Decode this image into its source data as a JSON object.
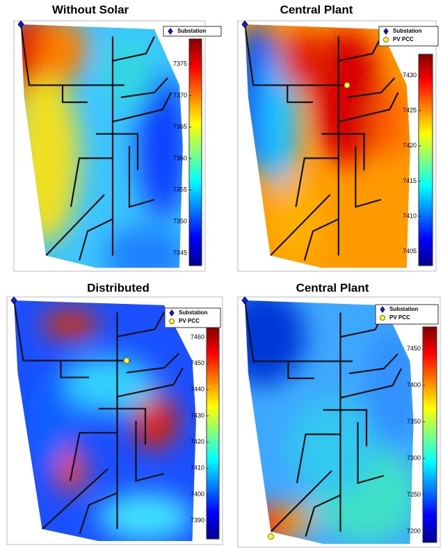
{
  "chart_data": [
    {
      "type": "heatmap",
      "title": "Without Solar",
      "ylim": [
        7343,
        7379
      ],
      "yticks": [
        7345,
        7350,
        7355,
        7360,
        7365,
        7370,
        7375
      ],
      "legend": [
        {
          "name": "Substation",
          "marker": "diamond",
          "color": "#1a1acc"
        }
      ]
    },
    {
      "type": "heatmap",
      "title": "Central Plant",
      "ylim": [
        7403,
        7433
      ],
      "yticks": [
        7405,
        7410,
        7415,
        7420,
        7425,
        7430
      ],
      "legend": [
        {
          "name": "Substation",
          "marker": "diamond",
          "color": "#1a1acc"
        },
        {
          "name": "PV PCC",
          "marker": "star",
          "color": "#ffff33"
        }
      ]
    },
    {
      "type": "heatmap",
      "title": "Distributed",
      "ylim": [
        7383,
        7464
      ],
      "yticks": [
        7390,
        7400,
        7410,
        7420,
        7430,
        7440,
        7450,
        7460
      ],
      "legend": [
        {
          "name": "Substation",
          "marker": "diamond",
          "color": "#1a1acc"
        },
        {
          "name": "PV PCC",
          "marker": "star",
          "color": "#ffff33"
        }
      ]
    },
    {
      "type": "heatmap",
      "title": "Central Plant",
      "ylim": [
        7185,
        7480
      ],
      "yticks": [
        7200,
        7250,
        7300,
        7350,
        7400,
        7450
      ],
      "legend": [
        {
          "name": "Substation",
          "marker": "diamond",
          "color": "#1a1acc"
        },
        {
          "name": "PV PCC",
          "marker": "star",
          "color": "#ffff33"
        }
      ]
    }
  ]
}
